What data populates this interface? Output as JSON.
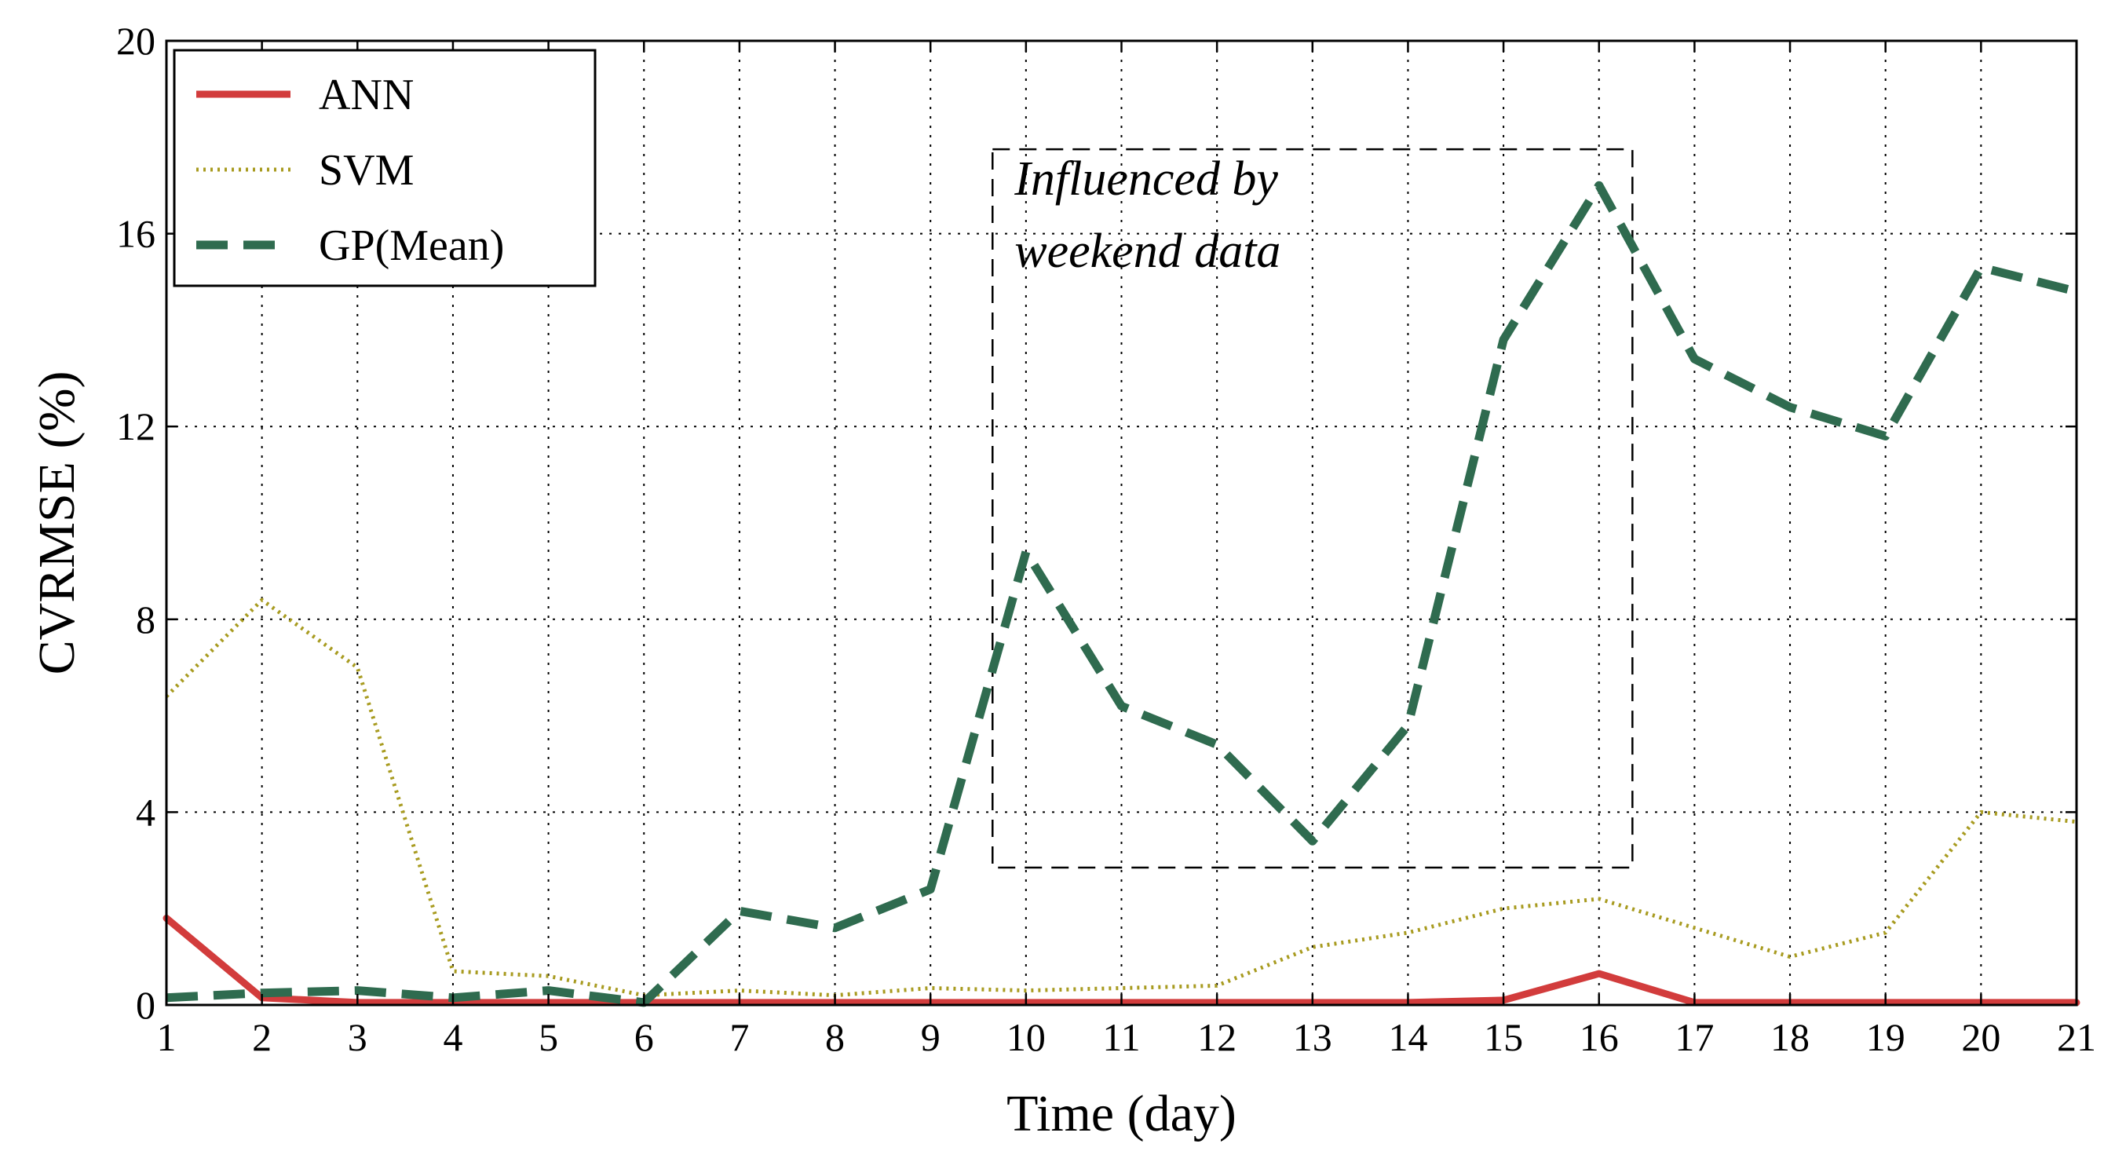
{
  "chart_data": {
    "type": "line",
    "xlabel": "Time (day)",
    "ylabel": "CVRMSE (%)",
    "xlim": [
      1,
      21
    ],
    "ylim": [
      0,
      20
    ],
    "x_ticks": [
      1,
      2,
      3,
      4,
      5,
      6,
      7,
      8,
      9,
      10,
      11,
      12,
      13,
      14,
      15,
      16,
      17,
      18,
      19,
      20,
      21
    ],
    "y_ticks": [
      0,
      4,
      8,
      12,
      16,
      20
    ],
    "grid": true,
    "legend_position": "top-left",
    "x": [
      1,
      2,
      3,
      4,
      5,
      6,
      7,
      8,
      9,
      10,
      11,
      12,
      13,
      14,
      15,
      16,
      17,
      18,
      19,
      20,
      21
    ],
    "series": [
      {
        "name": "ANN",
        "style": "solid",
        "color": "#d23c3c",
        "values": [
          1.8,
          0.15,
          0.05,
          0.05,
          0.05,
          0.05,
          0.05,
          0.05,
          0.05,
          0.05,
          0.05,
          0.05,
          0.05,
          0.05,
          0.1,
          0.65,
          0.05,
          0.05,
          0.05,
          0.05,
          0.05
        ]
      },
      {
        "name": "SVM",
        "style": "dotted",
        "color": "#a89b20",
        "values": [
          6.4,
          8.4,
          7.0,
          0.7,
          0.6,
          0.2,
          0.3,
          0.2,
          0.35,
          0.3,
          0.35,
          0.4,
          1.2,
          1.5,
          2.0,
          2.2,
          1.6,
          1.0,
          1.5,
          4.0,
          3.8
        ]
      },
      {
        "name": "GP(Mean)",
        "style": "dashed",
        "color": "#2f6b4f",
        "values": [
          0.15,
          0.25,
          0.3,
          0.15,
          0.3,
          0.05,
          1.95,
          1.6,
          2.4,
          9.4,
          6.2,
          5.4,
          3.4,
          5.8,
          13.8,
          17.0,
          13.4,
          12.4,
          11.8,
          15.3,
          14.8
        ]
      }
    ],
    "annotation": {
      "lines": [
        "Influenced by",
        "weekend data"
      ],
      "x_range": [
        9.65,
        16.35
      ],
      "y_range": [
        2.85,
        17.75
      ]
    }
  }
}
